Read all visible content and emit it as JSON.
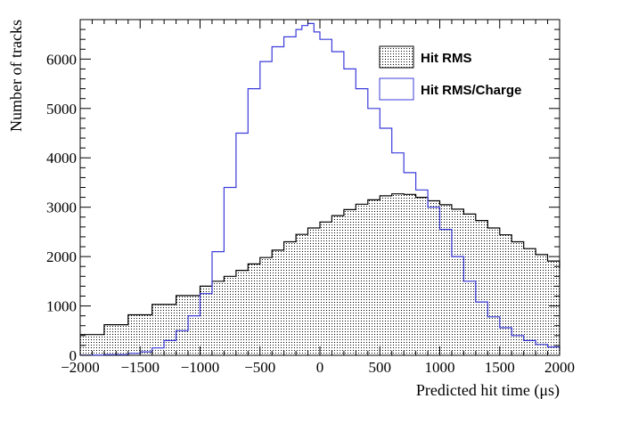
{
  "chart_data": {
    "type": "area",
    "title": "",
    "xlabel": "Predicted hit time (μs)",
    "ylabel": "Number of tracks",
    "xlim": [
      -2000,
      2000
    ],
    "ylim": [
      0,
      6800
    ],
    "x_ticks": [
      -2000,
      -1500,
      -1000,
      -500,
      0,
      500,
      1000,
      1500,
      2000
    ],
    "y_ticks": [
      0,
      1000,
      2000,
      3000,
      4000,
      5000,
      6000
    ],
    "grid": false,
    "legend_position": "top-right",
    "series": [
      {
        "name": "Hit RMS",
        "color": "#000000",
        "fill": "dotted",
        "x": [
          -2000,
          -1800,
          -1600,
          -1400,
          -1200,
          -1000,
          -900,
          -800,
          -700,
          -600,
          -500,
          -400,
          -300,
          -200,
          -100,
          0,
          100,
          200,
          300,
          400,
          500,
          600,
          700,
          800,
          900,
          1000,
          1100,
          1200,
          1300,
          1400,
          1500,
          1600,
          1700,
          1800,
          1900,
          2000
        ],
        "values": [
          420,
          620,
          820,
          1030,
          1210,
          1400,
          1500,
          1600,
          1720,
          1850,
          1980,
          2130,
          2300,
          2450,
          2580,
          2700,
          2830,
          2950,
          3060,
          3150,
          3230,
          3270,
          3260,
          3200,
          3130,
          3050,
          2960,
          2860,
          2730,
          2580,
          2440,
          2300,
          2160,
          2040,
          1910,
          1770
        ]
      },
      {
        "name": "Hit RMS/Charge",
        "color": "#3b3bdb",
        "fill": "none",
        "x": [
          -2000,
          -1800,
          -1600,
          -1500,
          -1400,
          -1300,
          -1200,
          -1100,
          -1000,
          -900,
          -800,
          -700,
          -600,
          -500,
          -400,
          -300,
          -200,
          -150,
          -100,
          -50,
          0,
          100,
          200,
          300,
          400,
          500,
          600,
          700,
          800,
          900,
          1000,
          1100,
          1200,
          1300,
          1400,
          1500,
          1600,
          1700,
          1800,
          1900,
          2000
        ],
        "values": [
          5,
          15,
          40,
          70,
          150,
          300,
          500,
          800,
          1250,
          2100,
          3400,
          4500,
          5400,
          5950,
          6250,
          6450,
          6600,
          6680,
          6720,
          6550,
          6400,
          6150,
          5800,
          5400,
          5000,
          4600,
          4100,
          3700,
          3350,
          3000,
          2550,
          2000,
          1500,
          1080,
          780,
          560,
          400,
          300,
          220,
          170,
          110
        ]
      }
    ]
  }
}
